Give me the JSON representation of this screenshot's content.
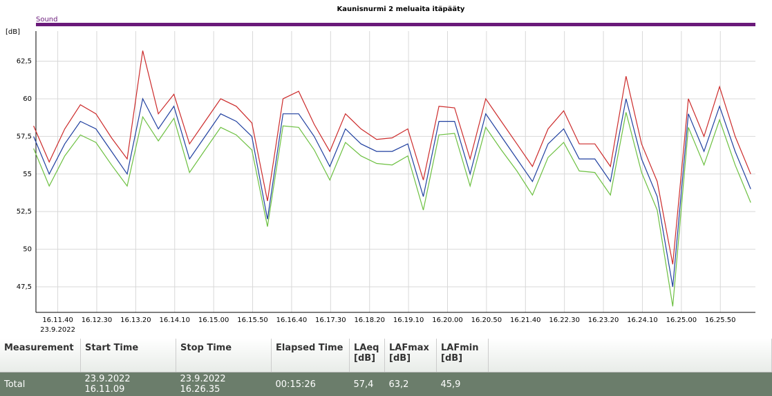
{
  "chart_data": {
    "type": "line",
    "title": "Kaunisnurmi 2 meluaita itäpääty",
    "legend_label": "Sound",
    "legend_color": "#6a1a7a",
    "ylabel": "[dB]",
    "x_date": "23.9.2022",
    "x": [
      "16.11.09",
      "16.11.29",
      "16.11.49",
      "16.12.09",
      "16.12.29",
      "16.12.49",
      "16.13.09",
      "16.13.29",
      "16.13.49",
      "16.14.09",
      "16.14.29",
      "16.14.49",
      "16.15.09",
      "16.15.29",
      "16.15.49",
      "16.16.09",
      "16.16.29",
      "16.16.49",
      "16.17.09",
      "16.17.29",
      "16.17.49",
      "16.18.09",
      "16.18.29",
      "16.18.49",
      "16.19.09",
      "16.19.29",
      "16.19.49",
      "16.20.09",
      "16.20.29",
      "16.20.49",
      "16.21.09",
      "16.21.29",
      "16.21.49",
      "16.22.09",
      "16.22.29",
      "16.22.49",
      "16.23.09",
      "16.23.29",
      "16.23.49",
      "16.24.09",
      "16.24.29",
      "16.24.49",
      "16.25.09",
      "16.25.29",
      "16.25.49",
      "16.26.09",
      "16.26.29"
    ],
    "xlim": [
      "16.11.12",
      "16.26.35"
    ],
    "xticks": [
      "16.11.40",
      "16.12.30",
      "16.13.20",
      "16.14.10",
      "16.15.00",
      "16.15.50",
      "16.16.40",
      "16.17.30",
      "16.18.20",
      "16.19.10",
      "16.20.00",
      "16.20.50",
      "16.21.40",
      "16.22.30",
      "16.23.20",
      "16.24.10",
      "16.25.00",
      "16.25.50"
    ],
    "ylim": [
      45.8,
      64.5
    ],
    "yticks": [
      {
        "value": 47.5,
        "label": "47,5"
      },
      50,
      {
        "value": 52.5,
        "label": "52,5"
      },
      55,
      {
        "value": 57.5,
        "label": "57,5"
      },
      60,
      {
        "value": 62.5,
        "label": "62,5"
      }
    ],
    "grid": true,
    "series": [
      {
        "color": "#cc2a2a",
        "values": [
          58.2,
          55.8,
          58,
          59.6,
          59,
          57.4,
          56,
          63.2,
          59,
          60.3,
          57,
          58.5,
          60,
          59.5,
          58.4,
          53.2,
          60,
          60.5,
          58.3,
          56.5,
          59,
          58,
          57.3,
          57.4,
          58,
          54.6,
          59.5,
          59.4,
          56,
          60,
          58.5,
          57,
          55.5,
          58,
          59.2,
          57,
          57,
          55.5,
          61.5,
          57,
          54.5,
          49,
          60,
          57.5,
          60.8,
          57.5,
          55
        ]
      },
      {
        "color": "#1f3f9f",
        "values": [
          57.5,
          55,
          57,
          58.5,
          58,
          56.5,
          55,
          60,
          58,
          59.5,
          56,
          57.5,
          59,
          58.5,
          57.5,
          52,
          59,
          59,
          57.5,
          55.5,
          58,
          57,
          56.5,
          56.5,
          57,
          53.5,
          58.5,
          58.5,
          55,
          59,
          57.5,
          56,
          54.5,
          57,
          58,
          56,
          56,
          54.5,
          60,
          56,
          53.5,
          47.5,
          59,
          56.5,
          59.5,
          56.5,
          54
        ]
      },
      {
        "color": "#6cc040",
        "values": [
          56.7,
          54.2,
          56.2,
          57.6,
          57.1,
          55.6,
          54.2,
          58.8,
          57.2,
          58.7,
          55.1,
          56.6,
          58.1,
          57.6,
          56.6,
          51.5,
          58.2,
          58.1,
          56.6,
          54.6,
          57.1,
          56.2,
          55.7,
          55.6,
          56.2,
          52.6,
          57.6,
          57.7,
          54.2,
          58.1,
          56.6,
          55.2,
          53.6,
          56.1,
          57.1,
          55.2,
          55.1,
          53.6,
          59.1,
          55.1,
          52.6,
          46.2,
          58.1,
          55.6,
          58.6,
          55.6,
          53.1
        ]
      }
    ]
  },
  "table": {
    "columns": [
      "Measurement",
      "Start Time",
      "Stop Time",
      "Elapsed Time",
      "LAeq [dB]",
      "LAFmax [dB]",
      "LAFmin [dB]"
    ],
    "rows": [
      [
        "Total",
        "23.9.2022 16.11.09",
        "23.9.2022 16.26.35",
        "00:15:26",
        "57,4",
        "63,2",
        "45,9"
      ]
    ]
  }
}
